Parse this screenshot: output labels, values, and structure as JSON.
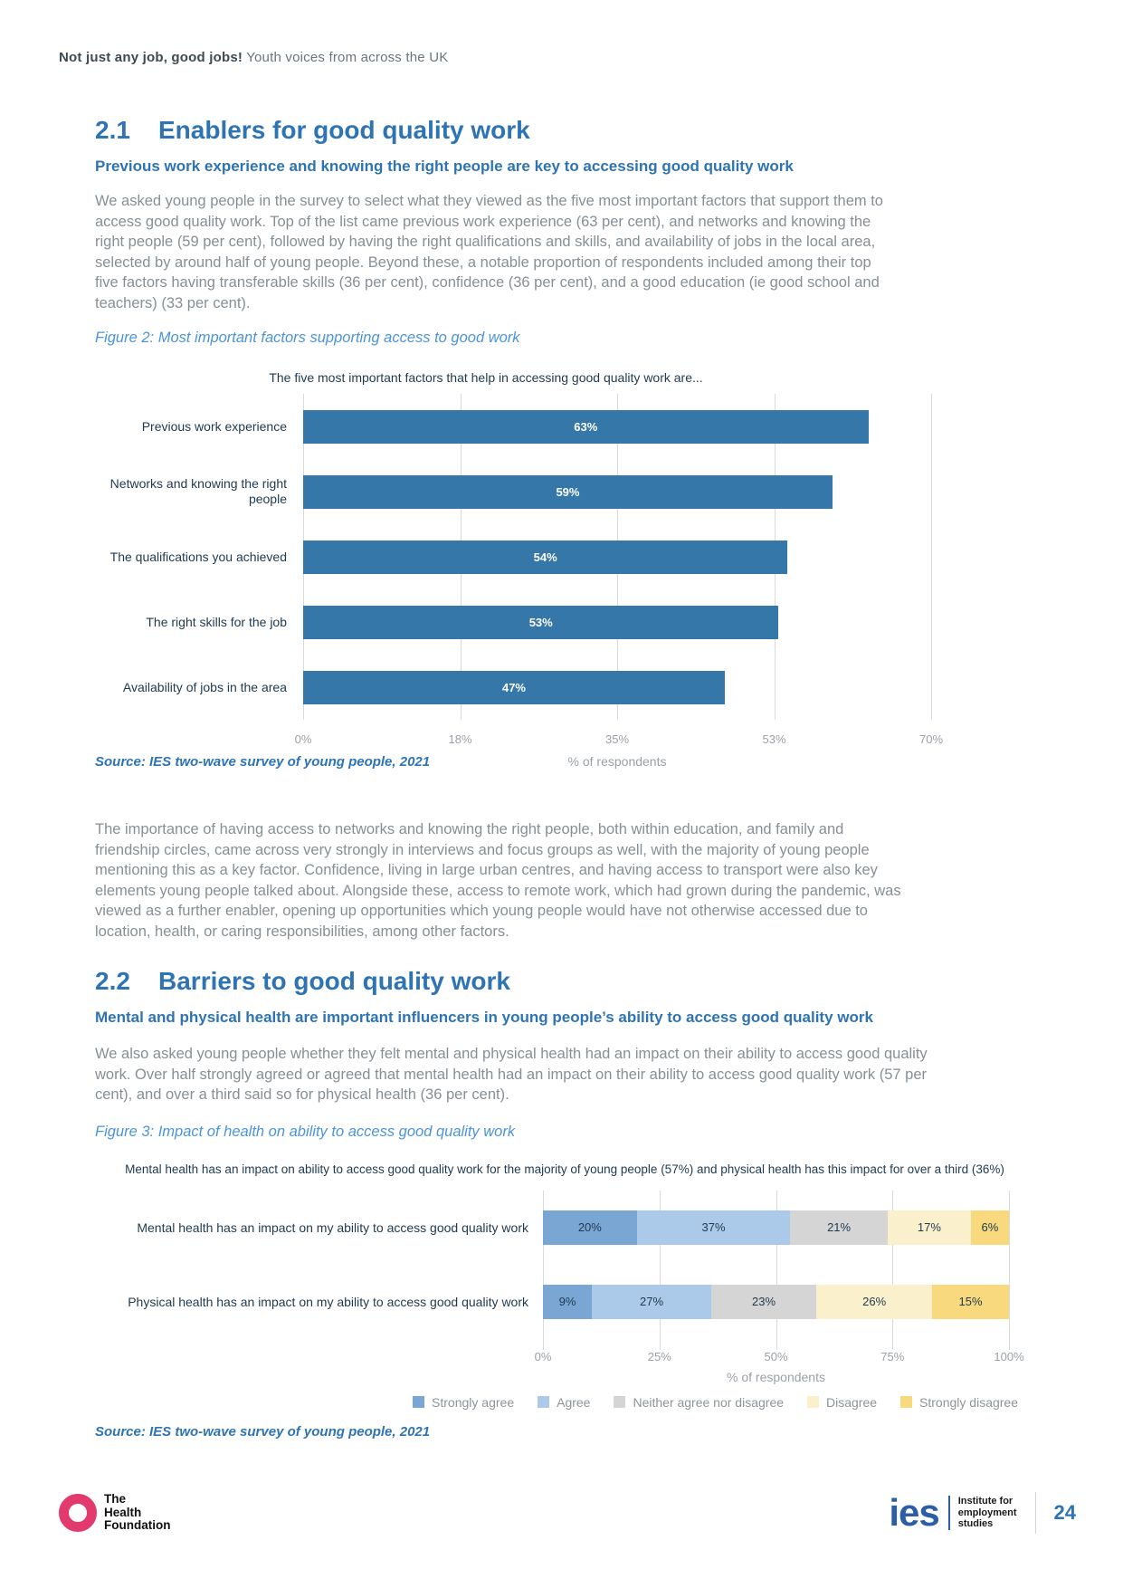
{
  "header": {
    "title_bold": "Not just any job, good jobs!",
    "title_rest": " Youth voices from across the UK"
  },
  "sections": {
    "s1": {
      "number": "2.1",
      "title": "Enablers for good quality work",
      "subheading": "Previous work experience and knowing the right people are key to accessing good quality work",
      "paragraph": "We asked young people in the survey to select what they viewed as the five most important factors that support them to access good quality work. Top of the list came previous work experience (63 per cent), and networks and knowing the right people (59 per cent), followed by having the right qualifications and skills, and availability of jobs in the local area, selected by around half of young people. Beyond these, a notable proportion of respondents included among their top five factors having transferable skills (36 per cent), confidence (36 per cent), and a good education (ie good school and teachers) (33 per cent).",
      "figure_caption": "Figure 2: Most important factors supporting access to good work",
      "source": "Source: IES two-wave survey of young people, 2021",
      "paragraph_after": "The importance of having access to networks and knowing the right people, both within education, and family and friendship circles, came across very strongly in interviews and focus groups as well, with the majority of young people mentioning this as a key factor. Confidence, living in large urban centres, and having access to transport were also key elements young people talked about. Alongside these, access to remote work, which had grown during the pandemic, was viewed as a further enabler, opening up opportunities which young people would have not otherwise accessed due to location, health, or caring responsibilities, among other factors."
    },
    "s2": {
      "number": "2.2",
      "title": "Barriers to good quality work",
      "subheading": "Mental and physical health are important influencers in young people’s ability to access good quality work",
      "paragraph": "We also asked young people whether they felt mental and physical health had an impact on their ability to access good quality work. Over half strongly agreed or agreed that mental health had an impact on their ability to access good quality work (57 per cent), and over a third said so for physical health (36 per cent).",
      "figure_caption": "Figure 3: Impact of health on ability to access good quality work",
      "source": "Source: IES two-wave survey of young people, 2021"
    }
  },
  "chart_data": [
    {
      "type": "bar",
      "orientation": "horizontal",
      "title": "The five most important factors that help in accessing good quality work are...",
      "categories": [
        "Previous work experience",
        "Networks and knowing the right people",
        "The qualifications you achieved",
        "The right skills for the job",
        "Availability of jobs in the area"
      ],
      "values": [
        63,
        59,
        54,
        53,
        47
      ],
      "xlabel": "% of respondents",
      "xlim": [
        0,
        70
      ],
      "xticks": [
        "0%",
        "18%",
        "35%",
        "53%",
        "70%"
      ],
      "bar_color": "#3577a8",
      "grid": true,
      "legend_position": "none"
    },
    {
      "type": "bar",
      "orientation": "horizontal",
      "stacked": true,
      "title": "Mental health has an impact on ability to access good quality work for the majority of young people (57%) and physical health has this impact for over a third (36%)",
      "categories": [
        "Mental health has an impact on my ability to access good quality work",
        "Physical health has an impact on my ability to access good quality work"
      ],
      "series": [
        {
          "name": "Strongly agree",
          "color": "#7aa6d4",
          "values": [
            20,
            9
          ]
        },
        {
          "name": "Agree",
          "color": "#abc9e8",
          "values": [
            37,
            27
          ]
        },
        {
          "name": "Neither agree nor disagree",
          "color": "#d5d5d5",
          "values": [
            21,
            23
          ]
        },
        {
          "name": "Disagree",
          "color": "#fbf0cc",
          "values": [
            17,
            26
          ]
        },
        {
          "name": "Strongly disagree",
          "color": "#f8d97e",
          "values": [
            6,
            15
          ]
        }
      ],
      "xlabel": "% of respondents",
      "xlim": [
        0,
        100
      ],
      "xticks": [
        "0%",
        "25%",
        "50%",
        "75%",
        "100%"
      ],
      "grid": true,
      "legend_position": "bottom"
    }
  ],
  "footer": {
    "thf_logo_text": "The\nHealth\nFoundation",
    "ies_mark": "ies",
    "ies_text": "Institute for\nemployment\nstudies",
    "page_number": "24"
  }
}
